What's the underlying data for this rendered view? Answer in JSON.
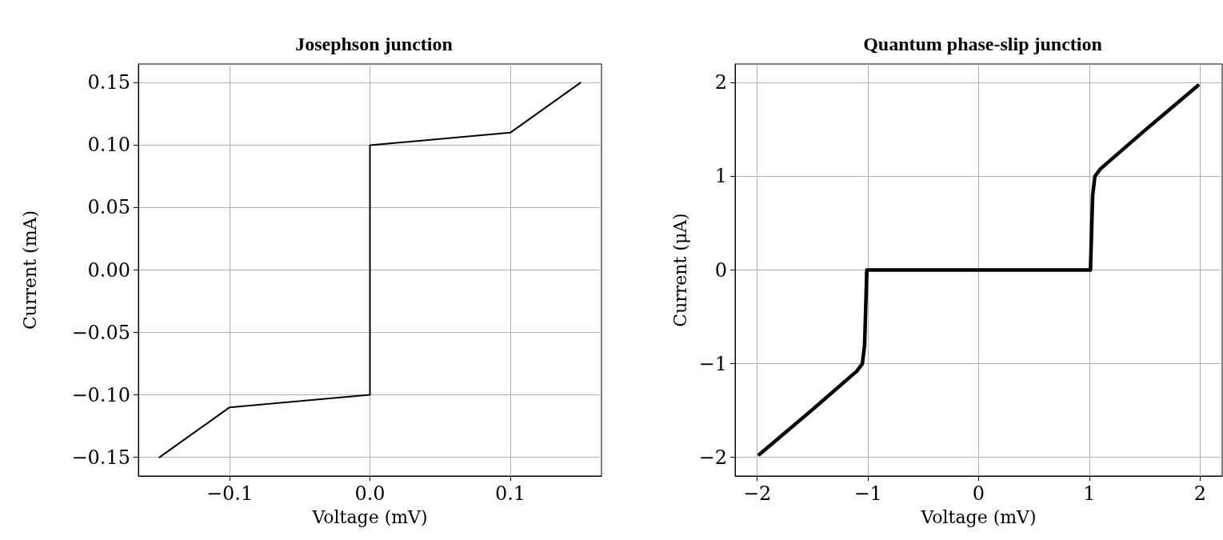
{
  "chart_data": [
    {
      "type": "line",
      "title": "Josephson junction",
      "xlabel": "Voltage (mV)",
      "ylabel": "Current (mA)",
      "color": "#000000",
      "grid": true,
      "marker": "none",
      "line_style": "solid",
      "x": [
        -0.15,
        -0.1,
        0,
        0,
        0.1,
        0.15
      ],
      "values": [
        -0.15,
        -0.11,
        -0.1,
        0.1,
        0.11,
        0.15
      ],
      "xlim": [
        -0.165,
        0.165
      ],
      "xticks": [
        {
          "value": -0.1,
          "label": "−0.1"
        },
        {
          "value": 0,
          "label": "0.0"
        },
        {
          "value": 0.1,
          "label": "0.1"
        }
      ],
      "ylim": [
        -0.165,
        0.165
      ],
      "yticks": [
        {
          "value": -0.15,
          "label": "−0.15"
        },
        {
          "value": -0.1,
          "label": "−0.10"
        },
        {
          "value": -0.05,
          "label": "−0.05"
        },
        {
          "value": 0,
          "label": "0.00"
        },
        {
          "value": 0.05,
          "label": "0.05"
        },
        {
          "value": 0.1,
          "label": "0.10"
        },
        {
          "value": 0.15,
          "label": "0.15"
        }
      ]
    },
    {
      "type": "line",
      "title": "Quantum phase-slip junction",
      "xlabel": "Voltage (mV)",
      "ylabel": "Current (μA)",
      "color": "#000000",
      "grid": true,
      "marker": "none",
      "line_style": "solid",
      "x": [
        -1.98,
        -1.5,
        -1.1,
        -1.05,
        -1.03,
        -1.02,
        -1.01,
        1.01,
        1.02,
        1.03,
        1.05,
        1.1,
        1.5,
        1.98
      ],
      "values": [
        -1.97,
        -1.49,
        -1.08,
        -1.0,
        -0.8,
        -0.4,
        0,
        0,
        0.4,
        0.8,
        1.0,
        1.08,
        1.49,
        1.97
      ],
      "xlim": [
        -2.2,
        2.2
      ],
      "xticks": [
        {
          "value": -2,
          "label": "−2"
        },
        {
          "value": -1,
          "label": "−1"
        },
        0,
        1,
        2
      ],
      "ylim": [
        -2.2,
        2.2
      ],
      "yticks": [
        {
          "value": -2,
          "label": "−2"
        },
        {
          "value": -1,
          "label": "−1"
        },
        0,
        1,
        2
      ]
    }
  ]
}
